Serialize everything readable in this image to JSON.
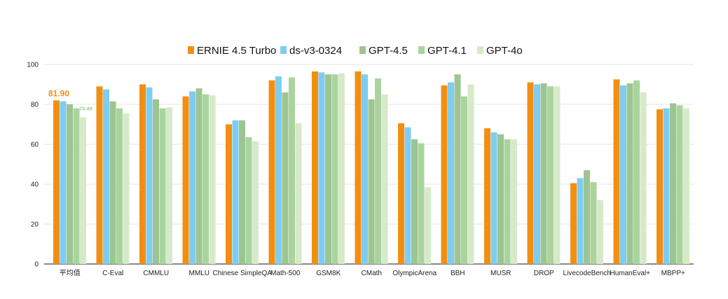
{
  "chart_data": {
    "type": "bar",
    "title": "",
    "xlabel": "",
    "ylabel": "",
    "ylim": [
      0,
      100
    ],
    "yticks": [
      "0",
      "20",
      "40",
      "60",
      "80",
      "100"
    ],
    "grid": true,
    "legend_position": "top-center",
    "categories": [
      "平均值",
      "C-Eval",
      "CMMLU",
      "MMLU",
      "Chinese SimpleQA",
      "Math-500",
      "GSM8K",
      "CMath",
      "OlympicArena",
      "BBH",
      "MUSR",
      "DROP",
      "LivecodeBench",
      "HumanEval+",
      "MBPP+"
    ],
    "series": [
      {
        "name": "ERNIE 4.5 Turbo",
        "color": "#f28f12",
        "values": [
          82,
          89,
          90,
          84,
          70,
          92,
          96.5,
          96.5,
          70.5,
          89.5,
          68,
          91,
          40.5,
          92.5,
          77.5
        ]
      },
      {
        "name": "ds-v3-0324",
        "color": "#7ecdf0",
        "values": [
          81.5,
          87.5,
          88.5,
          86.5,
          72,
          94,
          96,
          95,
          68.5,
          91,
          66,
          90,
          43,
          89.5,
          78
        ]
      },
      {
        "name": "GPT-4.5",
        "color": "#9dc592",
        "values": [
          80,
          81.5,
          82.5,
          88,
          72,
          86,
          95,
          82.5,
          62.5,
          95,
          65,
          90.5,
          47,
          90.5,
          80.5
        ]
      },
      {
        "name": "GPT-4.1",
        "color": "#a9d49e",
        "values": [
          78,
          78,
          78,
          85,
          63.5,
          93.5,
          95,
          93,
          60.5,
          84,
          62.5,
          89,
          41,
          92,
          79.5
        ]
      },
      {
        "name": "GPT-4o",
        "color": "#d6eac9",
        "values": [
          73.5,
          75.5,
          78.5,
          84.5,
          61.5,
          70.5,
          95.5,
          85,
          38.5,
          90,
          62.5,
          89,
          32,
          86,
          78
        ]
      }
    ],
    "annotations": [
      {
        "text": "81.90",
        "category": "平均值",
        "series": "ERNIE 4.5 Turbo",
        "color": "#f28f12"
      },
      {
        "text": "73.49",
        "category": "平均值",
        "series": "GPT-4o",
        "color": "#9dc592"
      }
    ]
  }
}
